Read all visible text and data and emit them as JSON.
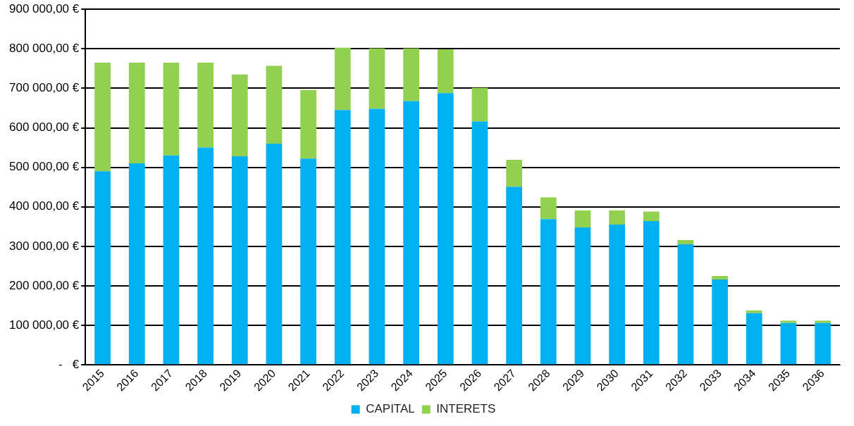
{
  "chart_data": {
    "type": "bar",
    "stacked": true,
    "categories": [
      "2015",
      "2016",
      "2017",
      "2018",
      "2019",
      "2020",
      "2021",
      "2022",
      "2023",
      "2024",
      "2025",
      "2026",
      "2027",
      "2028",
      "2029",
      "2030",
      "2031",
      "2032",
      "2033",
      "2034",
      "2035",
      "2036"
    ],
    "series": [
      {
        "name": "CAPITAL",
        "color": "#00b0f0",
        "values": [
          490000,
          510000,
          530000,
          550000,
          528000,
          560000,
          522000,
          645000,
          648000,
          668000,
          688000,
          616000,
          451000,
          369000,
          348000,
          355000,
          364000,
          305000,
          216000,
          131000,
          106000,
          106000
        ]
      },
      {
        "name": "INTERETS",
        "color": "#92d050",
        "values": [
          275000,
          255000,
          235000,
          215000,
          207000,
          197000,
          174000,
          158000,
          153000,
          133000,
          111000,
          85000,
          68000,
          55000,
          43000,
          36000,
          24000,
          11000,
          9000,
          7000,
          6000,
          6000
        ]
      }
    ],
    "ylim": [
      0,
      900000
    ],
    "yticks": [
      {
        "value": 0,
        "label": "-   €"
      },
      {
        "value": 100000,
        "label": "100 000,00 €"
      },
      {
        "value": 200000,
        "label": "200 000,00 €"
      },
      {
        "value": 300000,
        "label": "300 000,00 €"
      },
      {
        "value": 400000,
        "label": "400 000,00 €"
      },
      {
        "value": 500000,
        "label": "500 000,00 €"
      },
      {
        "value": 600000,
        "label": "600 000,00 €"
      },
      {
        "value": 700000,
        "label": "700 000,00 €"
      },
      {
        "value": 800000,
        "label": "800 000,00 €"
      },
      {
        "value": 900000,
        "label": "900 000,00 €"
      }
    ],
    "grid": "y",
    "legend": "bottom"
  }
}
